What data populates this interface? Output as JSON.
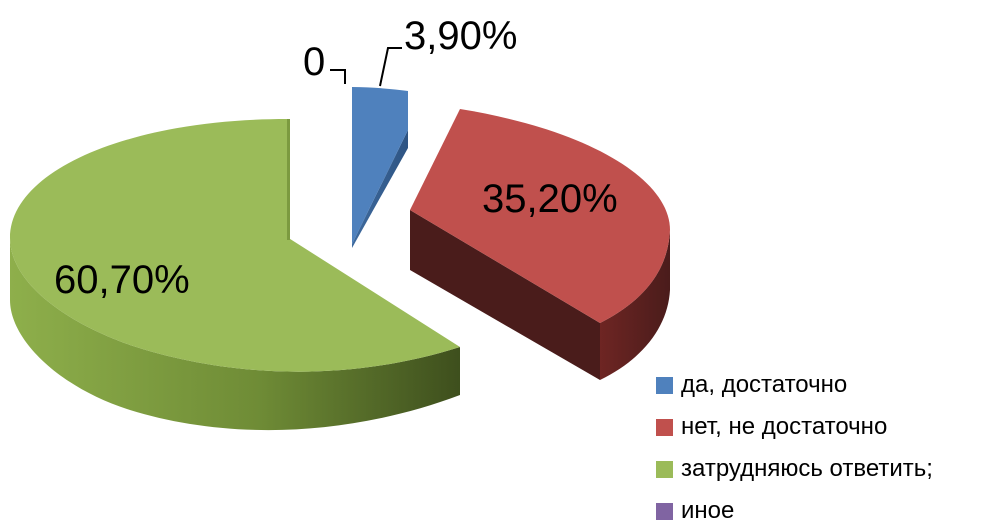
{
  "chart_data": {
    "type": "pie",
    "style": "3d-exploded",
    "categories": [
      "да, достаточно",
      "нет, не достаточно",
      "затрудняюсь ответить;",
      "иное"
    ],
    "values": [
      3.9,
      35.2,
      60.7,
      0
    ],
    "data_labels": [
      "3,90%",
      "35,20%",
      "60,70%",
      "0"
    ],
    "colors": [
      "#4F81BD",
      "#C0504D",
      "#9BBB59",
      "#8064A2"
    ],
    "legend_position": "bottom-right"
  }
}
